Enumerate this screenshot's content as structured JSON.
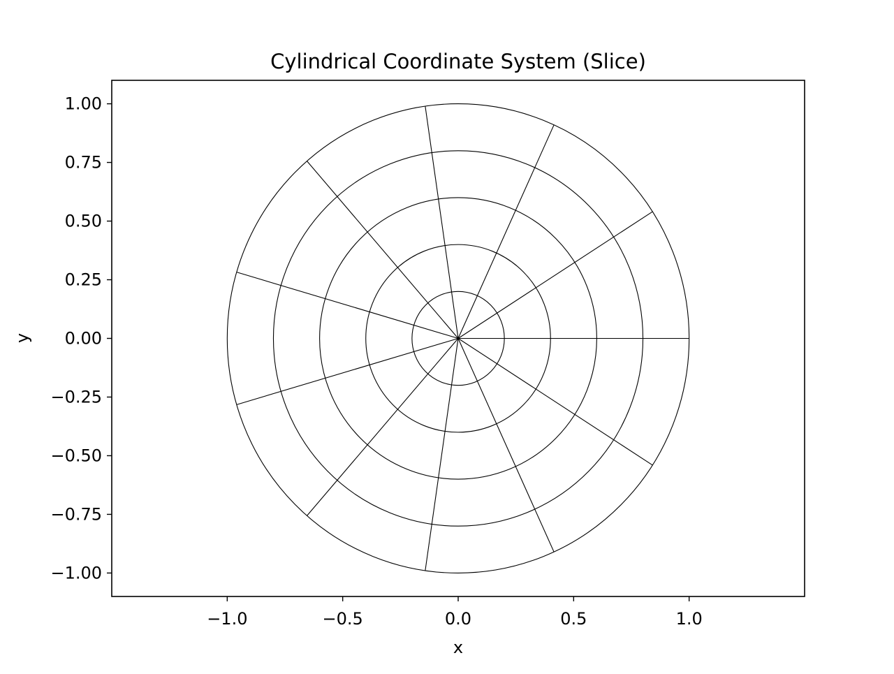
{
  "chart_data": {
    "type": "polar-grid",
    "title": "Cylindrical Coordinate System (Slice)",
    "xlabel": "x",
    "ylabel": "y",
    "xlim": [
      -1.5,
      1.5
    ],
    "ylim": [
      -1.1,
      1.1
    ],
    "xticks": [
      -1.0,
      -0.5,
      0.0,
      0.5,
      1.0
    ],
    "xtick_labels": [
      "−1.0",
      "−0.5",
      "0.0",
      "0.5",
      "1.0"
    ],
    "yticks": [
      1.0,
      0.75,
      0.5,
      0.25,
      0.0,
      -0.25,
      -0.5,
      -0.75,
      -1.0
    ],
    "ytick_labels": [
      "1.00",
      "0.75",
      "0.50",
      "0.25",
      "0.00",
      "−0.25",
      "−0.50",
      "−0.75",
      "−1.00"
    ],
    "circle_radii": [
      0.2,
      0.4,
      0.6,
      0.8,
      1.0
    ],
    "radial_line_angles_deg": [
      0,
      32.7,
      65.5,
      98.2,
      130.9,
      163.6,
      196.4,
      229.1,
      261.8,
      294.5,
      327.3
    ],
    "radial_line_length": 1.0,
    "grid": false,
    "line_color": "#000000"
  }
}
